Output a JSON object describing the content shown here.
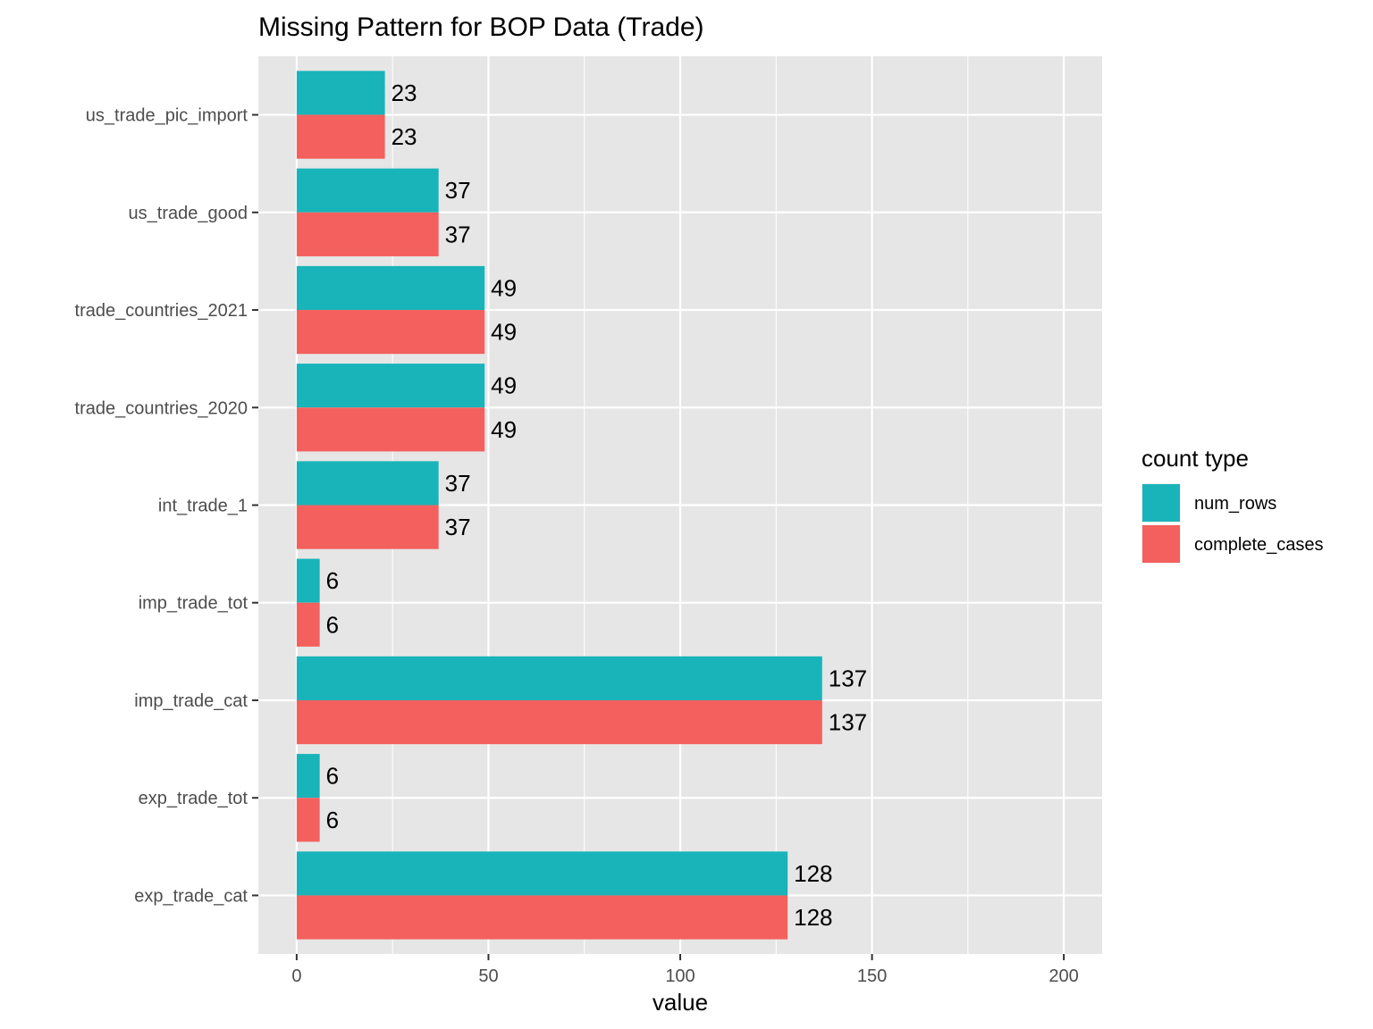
{
  "chart_data": {
    "type": "bar",
    "orientation": "horizontal",
    "title": "Missing Pattern for BOP Data (Trade)",
    "xlabel": "value",
    "ylabel": "",
    "xlim": [
      -10,
      210
    ],
    "xticks": [
      0,
      50,
      100,
      150,
      200
    ],
    "xtick_labels": [
      "0",
      "50",
      "100",
      "150",
      "200"
    ],
    "minor_xticks": [
      25,
      75,
      125,
      175
    ],
    "categories": [
      "us_trade_pic_import",
      "us_trade_good",
      "trade_countries_2021",
      "trade_countries_2020",
      "int_trade_1",
      "imp_trade_tot",
      "imp_trade_cat",
      "exp_trade_tot",
      "exp_trade_cat"
    ],
    "series": [
      {
        "name": "num_rows",
        "color": "#19B4B9",
        "values": [
          23,
          37,
          49,
          49,
          37,
          6,
          137,
          6,
          128
        ]
      },
      {
        "name": "complete_cases",
        "color": "#F4605D",
        "values": [
          23,
          37,
          49,
          49,
          37,
          6,
          137,
          6,
          128
        ]
      }
    ],
    "grid": true,
    "panel_background": "#E6E6E6",
    "grid_color": "#FFFFFF",
    "legend": {
      "title": "count type",
      "position": "right",
      "entries": [
        "num_rows",
        "complete_cases"
      ]
    }
  }
}
